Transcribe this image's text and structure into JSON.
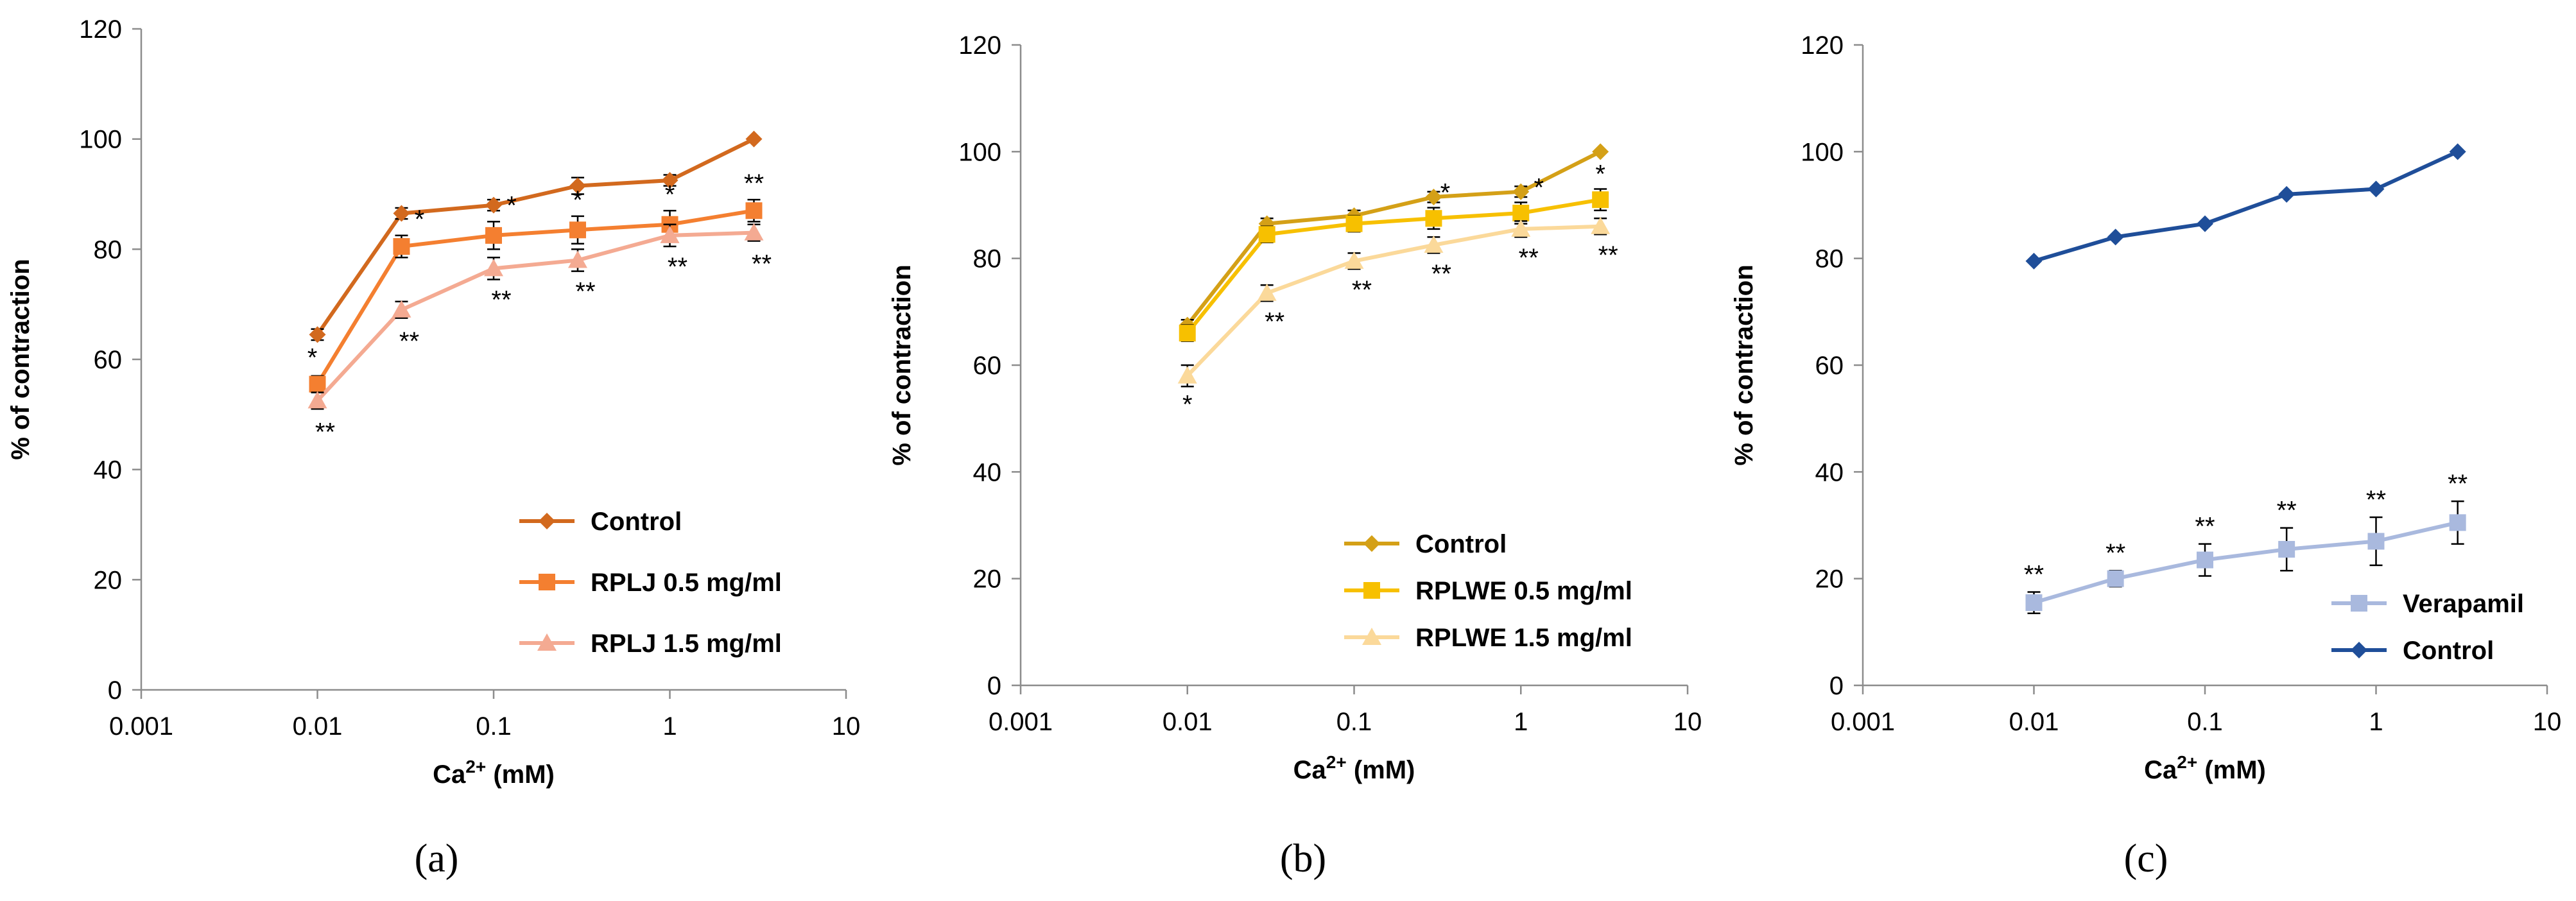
{
  "chart_data": [
    {
      "type": "line",
      "panel_label": "(a)",
      "xscale": "log",
      "xlabel_base": "Ca",
      "xlabel_sup": "2+",
      "xlabel_unit": " (mM)",
      "ylabel": "% of contraction",
      "xlim": [
        0.001,
        10
      ],
      "ylim": [
        0,
        120
      ],
      "xticks": [
        "0.001",
        "0.01",
        "0.1",
        "1",
        "10"
      ],
      "yticks": [
        "0",
        "20",
        "40",
        "60",
        "80",
        "100",
        "120"
      ],
      "grid": false,
      "legend_position": "bottom-right",
      "x": [
        0.01,
        0.03,
        0.1,
        0.3,
        1,
        3
      ],
      "series": [
        {
          "name": "Control",
          "color": "#d2691e",
          "marker": "diamond",
          "values": [
            64.5,
            86.5,
            88,
            91.5,
            92.5,
            100
          ],
          "errors": [
            1,
            1,
            1,
            1.5,
            1,
            0
          ],
          "stars": [
            "",
            "",
            "",
            "",
            "",
            ""
          ]
        },
        {
          "name": "RPLJ 0.5 mg/ml",
          "color": "#f47f30",
          "marker": "square",
          "values": [
            55.5,
            80.5,
            82.5,
            83.5,
            84.5,
            87
          ],
          "errors": [
            1.5,
            2,
            2.5,
            2.5,
            2.5,
            2
          ],
          "stars": [
            "*",
            "*",
            "*",
            "*",
            "*",
            "**"
          ]
        },
        {
          "name": "RPLJ 1.5 mg/ml",
          "color": "#f4aa92",
          "marker": "triangle",
          "values": [
            52.5,
            69,
            76.5,
            78,
            82.5,
            83
          ],
          "errors": [
            1.5,
            1.5,
            2,
            2,
            2,
            1.5
          ],
          "stars": [
            "**",
            "**",
            "**",
            "**",
            "**",
            "**"
          ]
        }
      ]
    },
    {
      "type": "line",
      "panel_label": "(b)",
      "xscale": "log",
      "xlabel_base": "Ca",
      "xlabel_sup": "2+",
      "xlabel_unit": " (mM)",
      "ylabel": "% of contraction",
      "xlim": [
        0.001,
        10
      ],
      "ylim": [
        0,
        120
      ],
      "xticks": [
        "0.001",
        "0.01",
        "0.1",
        "1",
        "10"
      ],
      "yticks": [
        "0",
        "20",
        "40",
        "60",
        "80",
        "100",
        "120"
      ],
      "grid": false,
      "legend_position": "bottom-right",
      "x": [
        0.01,
        0.03,
        0.1,
        0.3,
        1,
        3
      ],
      "series": [
        {
          "name": "Control",
          "color": "#d4a017",
          "marker": "diamond",
          "values": [
            67.5,
            86.5,
            88,
            91.5,
            92.5,
            100
          ],
          "errors": [
            1,
            1,
            1,
            1,
            1,
            0
          ],
          "stars": [
            "",
            "",
            "",
            "",
            "",
            ""
          ]
        },
        {
          "name": "RPLWE 0.5 mg/ml",
          "color": "#f7c000",
          "marker": "square",
          "values": [
            66,
            84.5,
            86.5,
            87.5,
            88.5,
            91
          ],
          "errors": [
            1.5,
            1.5,
            1.5,
            2,
            2,
            2
          ],
          "stars": [
            "",
            "",
            "",
            "*",
            "*",
            "*"
          ]
        },
        {
          "name": "RPLWE 1.5 mg/ml",
          "color": "#fbd99a",
          "marker": "triangle",
          "values": [
            58,
            73.5,
            79.5,
            82.5,
            85.5,
            86
          ],
          "errors": [
            2,
            1.5,
            1.5,
            1.5,
            1.5,
            1.5
          ],
          "stars": [
            "*",
            "**",
            "**",
            "**",
            "**",
            "**"
          ]
        }
      ]
    },
    {
      "type": "line",
      "panel_label": "(c)",
      "xscale": "log",
      "xlabel_base": "Ca",
      "xlabel_sup": "2+",
      "xlabel_unit": " (mM)",
      "ylabel": "% of contraction",
      "xlim": [
        0.001,
        10
      ],
      "ylim": [
        0,
        120
      ],
      "xticks": [
        "0.001",
        "0.01",
        "0.1",
        "1",
        "10"
      ],
      "yticks": [
        "0",
        "20",
        "40",
        "60",
        "80",
        "100",
        "120"
      ],
      "grid": false,
      "legend_position": "bottom-right",
      "x": [
        0.01,
        0.03,
        0.1,
        0.3,
        1,
        3
      ],
      "series": [
        {
          "name": "Verapamil",
          "color": "#a9b9de",
          "marker": "square",
          "values": [
            15.5,
            20,
            23.5,
            25.5,
            27,
            30.5
          ],
          "errors": [
            2,
            1.5,
            3,
            4,
            4.5,
            4
          ],
          "stars": [
            "**",
            "**",
            "**",
            "**",
            "**",
            "**"
          ]
        },
        {
          "name": "Control",
          "color": "#1f4e99",
          "marker": "diamond",
          "values": [
            79.5,
            84,
            86.5,
            92,
            93,
            100
          ],
          "errors": [
            0,
            0,
            0,
            0,
            0,
            0
          ],
          "stars": [
            "",
            "",
            "",
            "",
            "",
            ""
          ]
        }
      ]
    }
  ]
}
